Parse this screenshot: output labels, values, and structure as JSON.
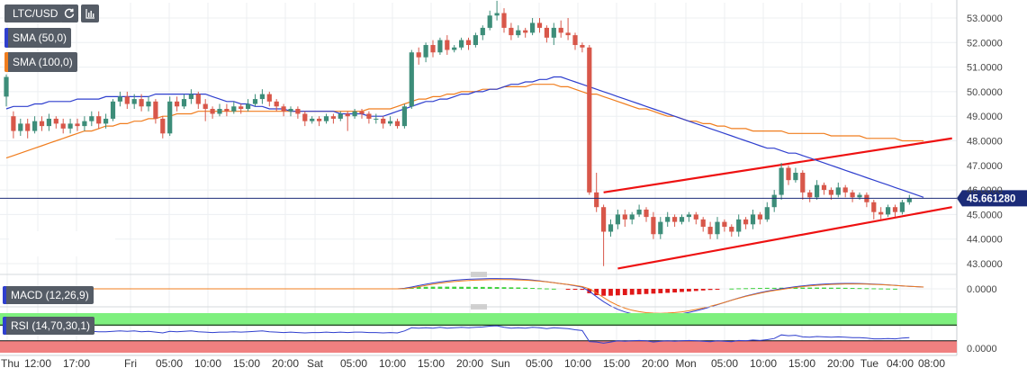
{
  "toolbar": {
    "symbol": "LTC/USD",
    "reload_icon": "reload-icon",
    "chart_type_icon": "bar-chart-icon"
  },
  "indicators": {
    "sma50": {
      "label": "SMA (50,0)",
      "color": "#2f3fce"
    },
    "sma100": {
      "label": "SMA (100,0)",
      "color": "#f07d1e"
    },
    "macd": {
      "label": "MACD (12,26,9)"
    },
    "rsi": {
      "label": "RSI (14,70,30,1)"
    }
  },
  "colors": {
    "up": "#3d8d79",
    "down": "#d8574a",
    "trendline": "#ee1111",
    "price_line": "#1b2b78",
    "rsi_overbought": "#7ef07e",
    "rsi_oversold": "#f08080"
  },
  "chart_data": {
    "type": "candlestick",
    "symbol": "LTC/USD",
    "last_price": "45.661280",
    "y_ticks": [
      "53.0000",
      "52.0000",
      "51.0000",
      "50.0000",
      "49.0000",
      "48.0000",
      "47.0000",
      "46.0000",
      "45.0000",
      "44.0000",
      "43.0000"
    ],
    "ylim": [
      42.7,
      53.7
    ],
    "x_ticks": [
      "Thu",
      "12:00",
      "17:00",
      "Fri",
      "05:00",
      "10:00",
      "15:00",
      "20:00",
      "Sat",
      "05:00",
      "10:00",
      "15:00",
      "20:00",
      "Sun",
      "05:00",
      "10:00",
      "15:00",
      "20:00",
      "Mon",
      "05:00",
      "10:00",
      "15:00",
      "20:00",
      "Tue",
      "04:00",
      "08:00"
    ],
    "candles": [
      [
        49.8,
        50.6,
        49.4,
        50.7
      ],
      [
        49.0,
        48.4,
        48.1,
        49.2
      ],
      [
        48.4,
        48.7,
        48.2,
        48.9
      ],
      [
        48.7,
        48.4,
        48.1,
        48.9
      ],
      [
        48.4,
        48.8,
        48.3,
        49.0
      ],
      [
        48.8,
        48.6,
        48.4,
        49.0
      ],
      [
        48.6,
        48.9,
        48.4,
        49.1
      ],
      [
        48.9,
        48.7,
        48.5,
        49.0
      ],
      [
        48.7,
        48.5,
        48.3,
        48.9
      ],
      [
        48.5,
        48.7,
        48.3,
        48.9
      ],
      [
        48.7,
        48.6,
        48.4,
        48.9
      ],
      [
        48.6,
        48.8,
        48.4,
        49.0
      ],
      [
        48.8,
        49.0,
        48.6,
        49.2
      ],
      [
        49.0,
        48.7,
        48.5,
        49.2
      ],
      [
        48.7,
        48.9,
        48.5,
        49.1
      ],
      [
        48.9,
        49.6,
        48.8,
        49.7
      ],
      [
        49.6,
        49.8,
        49.4,
        50.0
      ],
      [
        49.8,
        49.5,
        49.3,
        50.0
      ],
      [
        49.5,
        49.7,
        49.3,
        49.9
      ],
      [
        49.7,
        49.4,
        49.2,
        49.9
      ],
      [
        49.4,
        49.6,
        49.2,
        49.8
      ],
      [
        49.6,
        48.9,
        48.7,
        49.7
      ],
      [
        48.9,
        48.3,
        48.1,
        49.0
      ],
      [
        48.3,
        49.6,
        48.2,
        49.8
      ],
      [
        49.6,
        49.4,
        49.2,
        49.8
      ],
      [
        49.4,
        49.7,
        49.3,
        49.9
      ],
      [
        49.7,
        49.9,
        49.5,
        50.1
      ],
      [
        49.9,
        49.5,
        49.3,
        50.0
      ],
      [
        49.5,
        49.3,
        48.8,
        49.7
      ],
      [
        49.3,
        49.1,
        48.9,
        49.4
      ],
      [
        49.1,
        49.3,
        49.0,
        49.5
      ],
      [
        49.3,
        49.2,
        49.0,
        49.5
      ],
      [
        49.2,
        49.4,
        49.1,
        49.6
      ],
      [
        49.4,
        49.3,
        49.1,
        49.5
      ],
      [
        49.3,
        49.5,
        49.2,
        49.7
      ],
      [
        49.5,
        49.7,
        49.4,
        49.9
      ],
      [
        49.7,
        49.9,
        49.5,
        50.1
      ],
      [
        49.9,
        49.6,
        49.4,
        50.0
      ],
      [
        49.6,
        49.4,
        49.2,
        49.7
      ],
      [
        49.4,
        49.2,
        49.0,
        49.5
      ],
      [
        49.2,
        49.3,
        49.0,
        49.4
      ],
      [
        49.3,
        49.1,
        48.9,
        49.4
      ],
      [
        49.1,
        48.8,
        48.6,
        49.2
      ],
      [
        48.8,
        48.9,
        48.7,
        49.0
      ],
      [
        48.9,
        48.8,
        48.6,
        49.0
      ],
      [
        48.8,
        49.0,
        48.7,
        49.1
      ],
      [
        49.0,
        48.9,
        48.7,
        49.1
      ],
      [
        48.9,
        49.1,
        48.8,
        49.2
      ],
      [
        49.1,
        49.0,
        48.4,
        49.2
      ],
      [
        49.0,
        49.2,
        48.9,
        49.3
      ],
      [
        49.2,
        49.1,
        48.9,
        49.3
      ],
      [
        49.1,
        48.9,
        48.7,
        49.2
      ],
      [
        48.9,
        48.9,
        48.7,
        49.1
      ],
      [
        48.9,
        48.7,
        48.5,
        49.0
      ],
      [
        48.7,
        48.8,
        48.6,
        49.0
      ],
      [
        48.8,
        48.6,
        48.5,
        48.9
      ],
      [
        48.6,
        49.4,
        48.5,
        49.5
      ],
      [
        49.4,
        51.6,
        49.3,
        51.7
      ],
      [
        51.6,
        51.4,
        51.1,
        51.8
      ],
      [
        51.4,
        51.9,
        51.2,
        52.0
      ],
      [
        51.9,
        51.6,
        51.4,
        52.1
      ],
      [
        51.6,
        52.1,
        51.5,
        52.2
      ],
      [
        52.1,
        51.7,
        51.5,
        52.3
      ],
      [
        51.7,
        51.8,
        51.6,
        51.9
      ],
      [
        51.8,
        52.1,
        51.7,
        52.2
      ],
      [
        52.1,
        51.9,
        51.7,
        52.2
      ],
      [
        51.9,
        52.3,
        51.8,
        52.4
      ],
      [
        52.3,
        52.6,
        52.1,
        52.7
      ],
      [
        52.6,
        53.1,
        52.5,
        53.3
      ],
      [
        53.1,
        53.2,
        52.9,
        53.7
      ],
      [
        53.2,
        52.6,
        52.4,
        53.4
      ],
      [
        52.6,
        52.3,
        52.1,
        52.8
      ],
      [
        52.3,
        52.5,
        52.2,
        52.7
      ],
      [
        52.5,
        52.4,
        52.2,
        52.6
      ],
      [
        52.4,
        52.8,
        52.3,
        53.0
      ],
      [
        52.8,
        52.6,
        52.4,
        53.0
      ],
      [
        52.6,
        52.2,
        52.0,
        52.7
      ],
      [
        52.2,
        52.6,
        51.9,
        52.8
      ],
      [
        52.6,
        52.4,
        52.2,
        52.9
      ],
      [
        52.4,
        52.3,
        52.1,
        53.0
      ],
      [
        52.3,
        51.9,
        51.7,
        52.4
      ],
      [
        51.9,
        51.8,
        51.6,
        52.0
      ],
      [
        51.8,
        45.9,
        45.8,
        51.9
      ],
      [
        45.9,
        45.3,
        45.1,
        46.7
      ],
      [
        45.3,
        44.3,
        42.9,
        45.4
      ],
      [
        44.3,
        44.6,
        44.1,
        44.8
      ],
      [
        44.6,
        45.0,
        44.4,
        45.2
      ],
      [
        45.0,
        44.8,
        44.5,
        45.2
      ],
      [
        44.8,
        45.0,
        44.6,
        45.1
      ],
      [
        45.0,
        45.2,
        44.9,
        45.4
      ],
      [
        45.2,
        44.9,
        44.7,
        45.3
      ],
      [
        44.9,
        44.2,
        44.0,
        45.1
      ],
      [
        44.2,
        44.7,
        44.0,
        44.9
      ],
      [
        44.7,
        44.9,
        44.5,
        45.1
      ],
      [
        44.9,
        44.7,
        44.5,
        45.0
      ],
      [
        44.7,
        44.9,
        44.6,
        45.0
      ],
      [
        44.9,
        45.0,
        44.7,
        45.1
      ],
      [
        45.0,
        44.8,
        44.6,
        45.1
      ],
      [
        44.8,
        44.5,
        44.3,
        44.9
      ],
      [
        44.5,
        44.2,
        44.0,
        44.7
      ],
      [
        44.2,
        44.7,
        44.0,
        44.9
      ],
      [
        44.7,
        44.5,
        44.3,
        44.8
      ],
      [
        44.5,
        44.3,
        44.1,
        44.6
      ],
      [
        44.3,
        44.8,
        44.1,
        45.0
      ],
      [
        44.8,
        44.6,
        44.4,
        44.9
      ],
      [
        44.6,
        45.0,
        44.4,
        45.2
      ],
      [
        45.0,
        44.8,
        44.6,
        45.1
      ],
      [
        44.8,
        45.3,
        44.7,
        45.5
      ],
      [
        45.3,
        45.8,
        45.1,
        46.0
      ],
      [
        45.8,
        46.9,
        45.6,
        47.1
      ],
      [
        46.9,
        46.4,
        46.2,
        47.0
      ],
      [
        46.4,
        46.7,
        46.3,
        46.9
      ],
      [
        46.7,
        45.9,
        45.6,
        46.8
      ],
      [
        45.9,
        45.7,
        45.5,
        46.0
      ],
      [
        45.7,
        46.2,
        45.6,
        46.4
      ],
      [
        46.2,
        46.0,
        45.8,
        46.3
      ],
      [
        46.0,
        45.8,
        45.6,
        46.1
      ],
      [
        45.8,
        46.1,
        45.7,
        46.3
      ],
      [
        46.1,
        45.9,
        45.7,
        46.2
      ],
      [
        45.9,
        45.7,
        45.5,
        46.0
      ],
      [
        45.7,
        45.8,
        45.6,
        45.9
      ],
      [
        45.8,
        45.5,
        45.3,
        45.9
      ],
      [
        45.5,
        45.1,
        44.8,
        45.6
      ],
      [
        45.1,
        45.0,
        44.8,
        45.3
      ],
      [
        45.0,
        45.3,
        44.9,
        45.4
      ],
      [
        45.3,
        45.1,
        44.9,
        45.4
      ],
      [
        45.1,
        45.5,
        45.0,
        45.6
      ],
      [
        45.5,
        45.66,
        45.4,
        45.8
      ]
    ],
    "sma50": [
      49.3,
      49.4,
      49.4,
      49.4,
      49.5,
      49.5,
      49.6,
      49.6,
      49.6,
      49.6,
      49.7,
      49.7,
      49.7,
      49.7,
      49.8,
      49.8,
      49.8,
      49.8,
      49.8,
      49.8,
      49.8,
      49.9,
      49.9,
      49.9,
      49.9,
      49.9,
      49.9,
      49.9,
      49.9,
      49.8,
      49.7,
      49.6,
      49.6,
      49.5,
      49.5,
      49.4,
      49.4,
      49.3,
      49.3,
      49.3,
      49.2,
      49.2,
      49.2,
      49.2,
      49.2,
      49.2,
      49.2,
      49.1,
      49.1,
      49.1,
      49.1,
      49.0,
      49.0,
      49.0,
      49.1,
      49.2,
      49.3,
      49.4,
      49.5,
      49.6,
      49.6,
      49.7,
      49.7,
      49.8,
      49.9,
      49.9,
      50.0,
      50.0,
      50.1,
      50.1,
      50.2,
      50.3,
      50.3,
      50.4,
      50.4,
      50.5,
      50.5,
      50.6,
      50.6,
      50.5,
      50.4,
      50.3,
      50.2,
      50.1,
      50.0,
      49.9,
      49.8,
      49.7,
      49.6,
      49.5,
      49.4,
      49.3,
      49.2,
      49.1,
      49.0,
      48.9,
      48.8,
      48.7,
      48.6,
      48.5,
      48.4,
      48.3,
      48.2,
      48.1,
      48.0,
      47.9,
      47.8,
      47.7,
      47.7,
      47.6,
      47.5,
      47.5,
      47.4,
      47.3,
      47.2,
      47.1,
      47.0,
      46.9,
      46.8,
      46.7,
      46.6,
      46.5,
      46.4,
      46.3,
      46.2,
      46.1,
      46.0,
      45.9,
      45.8,
      45.7
    ],
    "sma100": [
      47.3,
      47.4,
      47.5,
      47.6,
      47.7,
      47.8,
      47.9,
      48.0,
      48.1,
      48.2,
      48.3,
      48.4,
      48.4,
      48.5,
      48.6,
      48.6,
      48.7,
      48.7,
      48.8,
      48.8,
      48.9,
      48.9,
      49.0,
      49.0,
      49.1,
      49.1,
      49.1,
      49.2,
      49.2,
      49.2,
      49.2,
      49.2,
      49.2,
      49.2,
      49.2,
      49.2,
      49.2,
      49.2,
      49.2,
      49.2,
      49.2,
      49.2,
      49.2,
      49.2,
      49.2,
      49.2,
      49.2,
      49.2,
      49.2,
      49.2,
      49.2,
      49.3,
      49.3,
      49.3,
      49.3,
      49.4,
      49.5,
      49.6,
      49.7,
      49.7,
      49.8,
      49.8,
      49.9,
      49.9,
      50.0,
      50.0,
      50.0,
      50.1,
      50.1,
      50.1,
      50.2,
      50.2,
      50.2,
      50.2,
      50.3,
      50.3,
      50.3,
      50.3,
      50.2,
      50.2,
      50.1,
      50.0,
      49.9,
      49.9,
      49.8,
      49.7,
      49.6,
      49.5,
      49.4,
      49.3,
      49.3,
      49.2,
      49.1,
      49.0,
      49.0,
      48.9,
      48.8,
      48.8,
      48.7,
      48.7,
      48.6,
      48.6,
      48.5,
      48.5,
      48.5,
      48.4,
      48.4,
      48.4,
      48.4,
      48.4,
      48.3,
      48.3,
      48.3,
      48.3,
      48.3,
      48.3,
      48.2,
      48.2,
      48.2,
      48.2,
      48.2,
      48.1,
      48.1,
      48.1,
      48.1,
      48.1,
      48.0,
      48.0,
      48.0,
      48.0
    ],
    "trendlines": [
      {
        "from_index": 84,
        "from_value": 45.9,
        "to_index": 133,
        "to_value": 48.1
      },
      {
        "from_index": 86,
        "from_value": 42.8,
        "to_index": 133,
        "to_value": 45.3
      }
    ],
    "macd": {
      "y_ticks": [
        "0.0000"
      ],
      "histogram": [
        0,
        0,
        0,
        0,
        0,
        0,
        0,
        0,
        0,
        0,
        0,
        0,
        0,
        0,
        0,
        0,
        0,
        0,
        0,
        0,
        0,
        0,
        0,
        0,
        0,
        0,
        0,
        0,
        0,
        0,
        0,
        0,
        0,
        0,
        0,
        0,
        0,
        0,
        0,
        0,
        0,
        0,
        0,
        0,
        0,
        0,
        0,
        0,
        0,
        0,
        0,
        0,
        0,
        0,
        0,
        0,
        0.05,
        0.12,
        0.15,
        0.16,
        0.17,
        0.17,
        0.17,
        0.17,
        0.16,
        0.16,
        0.15,
        0.15,
        0.15,
        0.14,
        0.13,
        0.12,
        0.11,
        0.09,
        0.07,
        0.05,
        0.03,
        0.01,
        0,
        -0.02,
        -0.05,
        -0.08,
        -0.35,
        -0.5,
        -0.55,
        -0.55,
        -0.52,
        -0.5,
        -0.47,
        -0.44,
        -0.41,
        -0.38,
        -0.35,
        -0.32,
        -0.29,
        -0.25,
        -0.21,
        -0.17,
        -0.13,
        -0.09,
        -0.05,
        0,
        0.02,
        0.04,
        0.05,
        0.06,
        0.07,
        0.08,
        0.08,
        0.09,
        0.1,
        0.1,
        0.1,
        0.1,
        0.1,
        0.1,
        0.09,
        0.09,
        0.08,
        0.07,
        0.06,
        0.05,
        0.04,
        0.03,
        0.02,
        0.01,
        0,
        0,
        0,
        0
      ]
    },
    "rsi": {
      "y_ticks": [
        "0.0000"
      ],
      "overbought": 70,
      "oversold": 30,
      "values": [
        52,
        52,
        53,
        53,
        52,
        53,
        54,
        53,
        52,
        53,
        52,
        53,
        54,
        53,
        53,
        54,
        55,
        54,
        55,
        53,
        54,
        52,
        50,
        54,
        53,
        54,
        55,
        53,
        52,
        51,
        52,
        52,
        53,
        52,
        53,
        54,
        55,
        53,
        52,
        51,
        52,
        51,
        50,
        51,
        51,
        52,
        51,
        52,
        51,
        52,
        52,
        51,
        51,
        50,
        51,
        50,
        55,
        63,
        62,
        63,
        62,
        64,
        62,
        63,
        64,
        63,
        64,
        65,
        67,
        68,
        64,
        62,
        63,
        62,
        64,
        63,
        61,
        63,
        62,
        61,
        58,
        56,
        28,
        27,
        24,
        27,
        30,
        29,
        30,
        31,
        30,
        27,
        29,
        30,
        29,
        30,
        31,
        30,
        29,
        28,
        30,
        29,
        28,
        31,
        30,
        32,
        31,
        33,
        36,
        45,
        43,
        44,
        40,
        39,
        41,
        40,
        39,
        40,
        39,
        38,
        38,
        37,
        35,
        35,
        36,
        35,
        37,
        38
      ]
    }
  }
}
